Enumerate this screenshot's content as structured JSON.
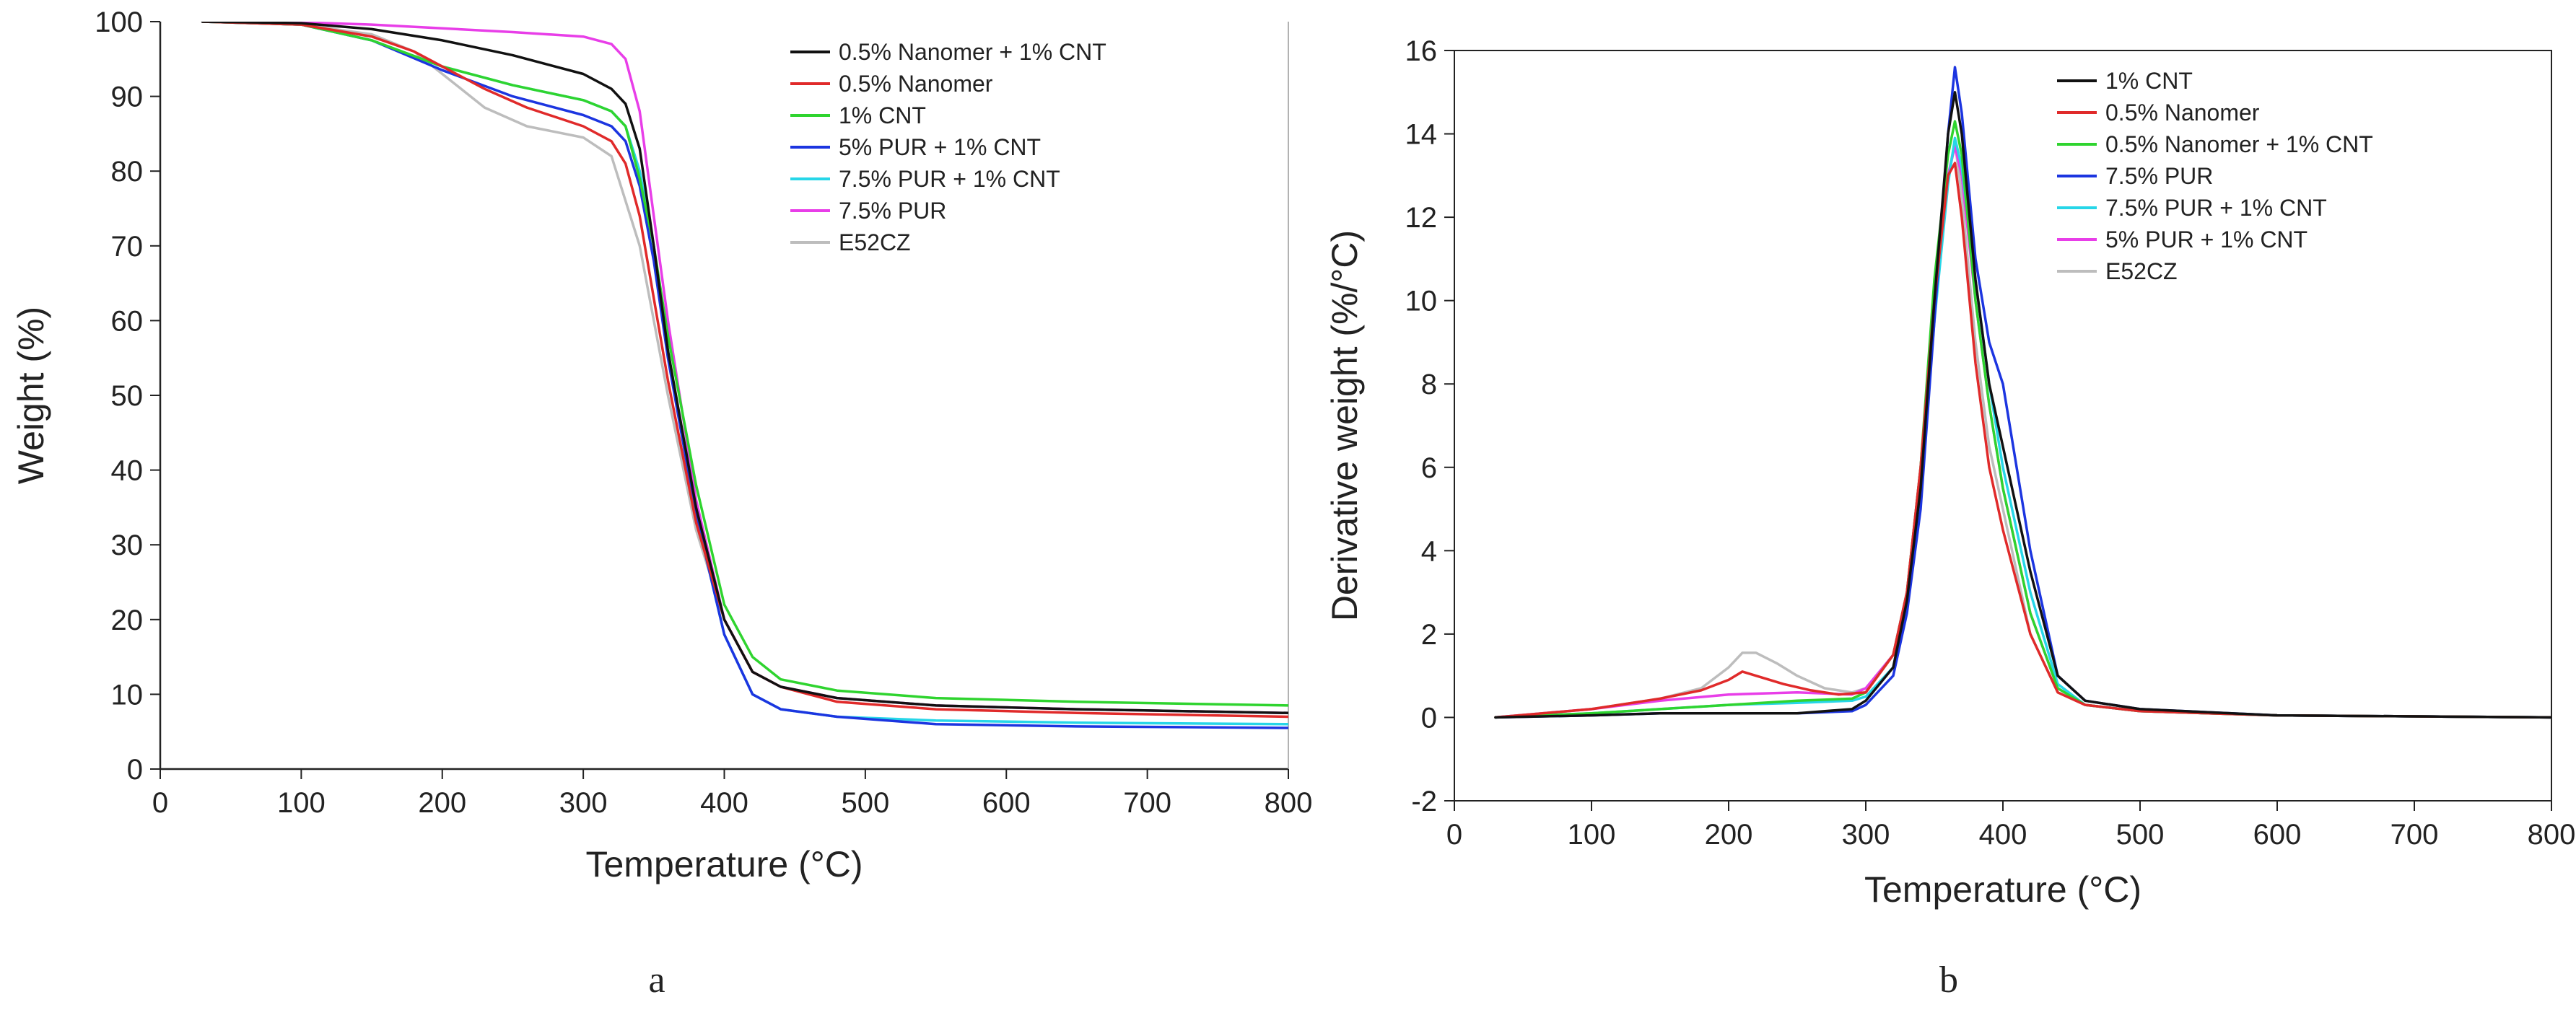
{
  "chart_data": [
    {
      "type": "line",
      "panel_label": "a",
      "xlabel": "Temperature (°C)",
      "ylabel": "Weight (%)",
      "xlim": [
        0,
        800
      ],
      "ylim": [
        0,
        100
      ],
      "xticks": [
        0,
        100,
        200,
        300,
        400,
        500,
        600,
        700,
        800
      ],
      "yticks": [
        0,
        10,
        20,
        30,
        40,
        50,
        60,
        70,
        80,
        90,
        100
      ],
      "grid": false,
      "legend_position": "top-right",
      "series": [
        {
          "name": "E52CZ",
          "color": "#bdbdbd",
          "x": [
            30,
            100,
            150,
            180,
            200,
            230,
            260,
            300,
            320,
            340,
            360,
            380,
            400,
            420,
            440,
            480,
            550,
            650,
            800
          ],
          "y": [
            100,
            99.6,
            98.3,
            96,
            93,
            88.5,
            86,
            84.5,
            82,
            70,
            50,
            32,
            20,
            13,
            11,
            9.5,
            8.5,
            8,
            7.5
          ]
        },
        {
          "name": "7.5% PUR",
          "color": "#e83ee8",
          "x": [
            30,
            100,
            150,
            200,
            250,
            300,
            320,
            330,
            340,
            350,
            360,
            380,
            400,
            420,
            440,
            480,
            550,
            650,
            800
          ],
          "y": [
            100,
            99.9,
            99.6,
            99.1,
            98.6,
            98,
            97,
            95,
            88,
            74,
            60,
            36,
            20,
            13,
            11,
            9.5,
            8.5,
            8,
            7.5
          ]
        },
        {
          "name": "7.5% PUR + 1% CNT",
          "color": "#27d6e8",
          "x": [
            30,
            100,
            150,
            200,
            250,
            300,
            320,
            330,
            340,
            350,
            360,
            380,
            400,
            420,
            440,
            480,
            550,
            650,
            800
          ],
          "y": [
            100,
            99.6,
            97.5,
            94,
            91.5,
            89.5,
            88,
            86,
            80,
            70,
            56,
            34,
            18,
            10,
            8,
            7,
            6.5,
            6.2,
            6
          ]
        },
        {
          "name": "5% PUR + 1% CNT",
          "color": "#1c35e0",
          "x": [
            30,
            100,
            150,
            200,
            250,
            300,
            320,
            330,
            340,
            350,
            360,
            380,
            400,
            420,
            440,
            480,
            550,
            650,
            800
          ],
          "y": [
            100,
            99.6,
            97.5,
            93.5,
            90,
            87.5,
            86,
            84,
            78,
            68,
            55,
            34,
            18,
            10,
            8,
            7,
            6,
            5.7,
            5.5
          ]
        },
        {
          "name": "1% CNT",
          "color": "#2fd42f",
          "x": [
            30,
            100,
            150,
            200,
            250,
            300,
            320,
            330,
            340,
            350,
            360,
            380,
            400,
            420,
            440,
            480,
            550,
            650,
            800
          ],
          "y": [
            100,
            99.6,
            97.5,
            94,
            91.5,
            89.5,
            88,
            86,
            79,
            70,
            58,
            38,
            22,
            15,
            12,
            10.5,
            9.5,
            9,
            8.5
          ]
        },
        {
          "name": "0.5% Nanomer",
          "color": "#e02a2a",
          "x": [
            30,
            100,
            150,
            180,
            200,
            230,
            260,
            300,
            320,
            330,
            340,
            350,
            360,
            380,
            400,
            420,
            440,
            480,
            550,
            650,
            800
          ],
          "y": [
            100,
            99.6,
            98,
            96,
            94,
            91,
            88.5,
            86,
            84,
            81,
            74,
            63,
            52,
            33,
            20,
            13,
            11,
            9,
            8,
            7.5,
            7
          ]
        },
        {
          "name": "0.5% Nanomer + 1% CNT",
          "color": "#111111",
          "x": [
            30,
            100,
            150,
            200,
            250,
            300,
            320,
            330,
            340,
            350,
            360,
            380,
            400,
            420,
            440,
            480,
            550,
            650,
            800
          ],
          "y": [
            100,
            99.8,
            99,
            97.5,
            95.5,
            93,
            91,
            89,
            83,
            70,
            56,
            35,
            20,
            13,
            11,
            9.5,
            8.5,
            8,
            7.5
          ]
        }
      ],
      "legend_order": [
        "0.5% Nanomer + 1% CNT",
        "0.5% Nanomer",
        "1% CNT",
        "5% PUR + 1% CNT",
        "7.5% PUR + 1% CNT",
        "7.5% PUR",
        "E52CZ"
      ]
    },
    {
      "type": "line",
      "panel_label": "b",
      "xlabel": "Temperature (°C)",
      "ylabel": "Derivative weight (%/°C)",
      "xlim": [
        0,
        800
      ],
      "ylim": [
        -2,
        16
      ],
      "xticks": [
        0,
        100,
        200,
        300,
        400,
        500,
        600,
        700,
        800
      ],
      "yticks": [
        -2,
        0,
        2,
        4,
        6,
        8,
        10,
        12,
        14,
        16
      ],
      "grid": false,
      "legend_position": "top-right",
      "series": [
        {
          "name": "E52CZ",
          "color": "#bdbdbd",
          "x": [
            30,
            100,
            150,
            180,
            200,
            210,
            220,
            235,
            250,
            270,
            290,
            300,
            320,
            330,
            340,
            350,
            360,
            365,
            370,
            380,
            390,
            400,
            420,
            440,
            460,
            500,
            600,
            800
          ],
          "y": [
            0,
            0.2,
            0.45,
            0.7,
            1.2,
            1.55,
            1.55,
            1.3,
            1,
            0.7,
            0.6,
            0.7,
            1.5,
            3,
            6,
            10,
            13,
            13.8,
            12.5,
            9,
            6.5,
            5,
            2,
            0.6,
            0.3,
            0.15,
            0.05,
            0
          ]
        },
        {
          "name": "5% PUR + 1% CNT",
          "color": "#e83ee8",
          "x": [
            30,
            100,
            150,
            200,
            250,
            290,
            300,
            320,
            330,
            340,
            350,
            360,
            365,
            370,
            380,
            390,
            400,
            420,
            440,
            460,
            500,
            600,
            800
          ],
          "y": [
            0,
            0.2,
            0.4,
            0.55,
            0.6,
            0.55,
            0.7,
            1.5,
            3,
            6,
            10,
            13,
            13.7,
            13,
            10,
            7.5,
            5.5,
            2.5,
            0.7,
            0.3,
            0.15,
            0.05,
            0
          ]
        },
        {
          "name": "7.5% PUR + 1% CNT",
          "color": "#27d6e8",
          "x": [
            30,
            100,
            150,
            200,
            250,
            290,
            300,
            320,
            330,
            340,
            350,
            360,
            365,
            370,
            380,
            390,
            400,
            420,
            440,
            460,
            500,
            600,
            800
          ],
          "y": [
            0,
            0.1,
            0.2,
            0.3,
            0.35,
            0.4,
            0.5,
            1.2,
            2.8,
            5.5,
            9.5,
            12.8,
            13.9,
            13.2,
            10.5,
            8,
            6,
            3,
            0.8,
            0.3,
            0.15,
            0.05,
            0
          ]
        },
        {
          "name": "7.5% PUR",
          "color": "#1c35e0",
          "x": [
            30,
            100,
            150,
            200,
            250,
            290,
            300,
            320,
            330,
            340,
            350,
            360,
            365,
            370,
            380,
            390,
            400,
            420,
            440,
            460,
            500,
            600,
            800
          ],
          "y": [
            0,
            0.05,
            0.1,
            0.1,
            0.1,
            0.15,
            0.3,
            1,
            2.5,
            5,
            9.5,
            14,
            15.6,
            14.5,
            11,
            9,
            8,
            4,
            1,
            0.4,
            0.2,
            0.05,
            0
          ]
        },
        {
          "name": "0.5% Nanomer + 1% CNT",
          "color": "#2fd42f",
          "x": [
            30,
            100,
            150,
            200,
            250,
            290,
            300,
            320,
            330,
            340,
            350,
            360,
            365,
            370,
            380,
            390,
            400,
            420,
            440,
            460,
            500,
            600,
            800
          ],
          "y": [
            0,
            0.1,
            0.2,
            0.3,
            0.4,
            0.45,
            0.6,
            1.5,
            3,
            6,
            10.5,
            13.5,
            14.3,
            13.5,
            10,
            7.5,
            5.5,
            2.5,
            0.7,
            0.3,
            0.15,
            0.05,
            0
          ]
        },
        {
          "name": "0.5% Nanomer",
          "color": "#e02a2a",
          "x": [
            30,
            100,
            150,
            180,
            200,
            210,
            220,
            240,
            260,
            280,
            300,
            320,
            330,
            340,
            350,
            360,
            365,
            370,
            380,
            390,
            400,
            420,
            440,
            460,
            500,
            600,
            800
          ],
          "y": [
            0,
            0.2,
            0.45,
            0.65,
            0.9,
            1.1,
            1.0,
            0.8,
            0.65,
            0.55,
            0.6,
            1.5,
            3,
            6,
            10,
            13,
            13.3,
            12,
            8.5,
            6,
            4.5,
            2,
            0.6,
            0.3,
            0.15,
            0.05,
            0
          ]
        },
        {
          "name": "1% CNT",
          "color": "#111111",
          "x": [
            30,
            100,
            150,
            200,
            250,
            290,
            300,
            320,
            330,
            340,
            350,
            360,
            365,
            370,
            380,
            390,
            400,
            420,
            440,
            460,
            500,
            600,
            800
          ],
          "y": [
            0,
            0.05,
            0.1,
            0.1,
            0.1,
            0.2,
            0.4,
            1.2,
            2.8,
            5.5,
            10,
            14,
            15,
            14,
            10.5,
            8,
            6.5,
            3.5,
            1,
            0.4,
            0.2,
            0.05,
            0
          ]
        }
      ],
      "legend_order": [
        "1% CNT",
        "0.5% Nanomer",
        "0.5% Nanomer + 1% CNT",
        "7.5% PUR",
        "7.5% PUR + 1% CNT",
        "5% PUR + 1% CNT",
        "E52CZ"
      ]
    }
  ]
}
